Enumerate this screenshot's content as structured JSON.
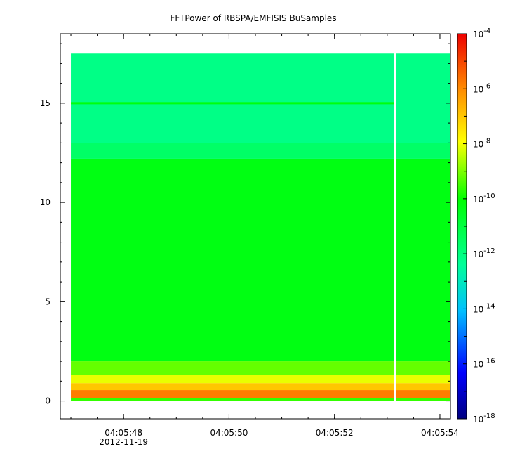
{
  "chart_data": {
    "type": "heatmap",
    "title": "FFTPower of RBSPA/EMFISIS  BuSamples",
    "xlabel": "",
    "ylabel": "",
    "x_tick_labels": [
      "04:05:48",
      "04:05:50",
      "04:05:52",
      "04:05:54"
    ],
    "x_date_label": "2012-11-19",
    "x_range": [
      "04:05:46.8",
      "04:05:54.2"
    ],
    "y_ticks": [
      0,
      5,
      10,
      15
    ],
    "y_range": [
      -0.9,
      18.5
    ],
    "data_start_time": "04:05:47.0",
    "data_end_time": "04:05:54.2",
    "data_gap_time": "04:05:53.15",
    "freq_max": 17.5,
    "colorbar": {
      "scale": "log",
      "range": [
        1e-18,
        0.0001
      ],
      "tick_exponents": [
        -4,
        -6,
        -8,
        -10,
        -12,
        -14,
        -16,
        -18
      ],
      "tick_base": "10"
    },
    "bands": [
      {
        "f_low": 0.0,
        "f_high": 0.15,
        "log_power": -9.6
      },
      {
        "f_low": 0.15,
        "f_high": 0.55,
        "log_power": -5.8
      },
      {
        "f_low": 0.55,
        "f_high": 0.9,
        "log_power": -7.0
      },
      {
        "f_low": 0.9,
        "f_high": 1.3,
        "log_power": -8.1
      },
      {
        "f_low": 1.3,
        "f_high": 2.0,
        "log_power": -9.2
      },
      {
        "f_low": 2.0,
        "f_high": 12.2,
        "log_power": -10.3
      },
      {
        "f_low": 12.2,
        "f_high": 13.0,
        "log_power": -11.6
      },
      {
        "f_low": 13.0,
        "f_high": 17.5,
        "log_power": -12.1
      }
    ],
    "narrow_line": {
      "freq": 15.0,
      "log_power": -10.2
    }
  }
}
